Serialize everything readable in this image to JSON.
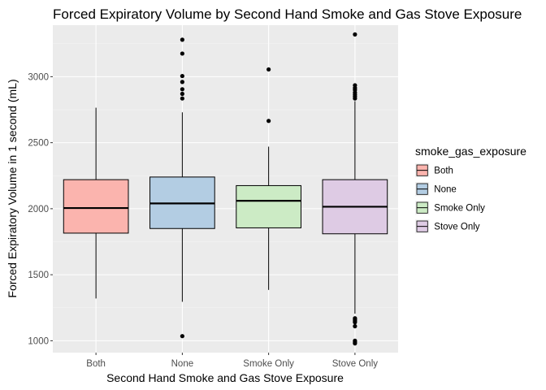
{
  "chart_data": {
    "type": "boxplot",
    "title": "Forced Expiratory Volume by Second Hand Smoke and Gas Stove Exposure",
    "xlabel": "Second Hand Smoke and Gas Stove Exposure",
    "ylabel": "Forced Expiratory Volume in 1 second (mL)",
    "ylim": [
      910,
      3390
    ],
    "yticks": [
      1000,
      1500,
      2000,
      2500,
      3000
    ],
    "grid": true,
    "legend": {
      "title": "smoke_gas_exposure",
      "position": "right",
      "entries": [
        "Both",
        "None",
        "Smoke Only",
        "Stove Only"
      ]
    },
    "categories": [
      "Both",
      "None",
      "Smoke Only",
      "Stove Only"
    ],
    "series": [
      {
        "name": "Both",
        "color": "#fbb4ae",
        "whisker_low": 1320,
        "q1": 1815,
        "median": 2005,
        "q3": 2220,
        "whisker_high": 2765,
        "outliers": []
      },
      {
        "name": "None",
        "color": "#b3cde3",
        "whisker_low": 1295,
        "q1": 1850,
        "median": 2040,
        "q3": 2240,
        "whisker_high": 2730,
        "outliers": [
          3280,
          3175,
          3005,
          2960,
          2905,
          2870,
          2835,
          1035
        ]
      },
      {
        "name": "Smoke Only",
        "color": "#ccebc5",
        "whisker_low": 1385,
        "q1": 1855,
        "median": 2060,
        "q3": 2175,
        "whisker_high": 2470,
        "outliers": [
          3055,
          2665
        ]
      },
      {
        "name": "Stove Only",
        "color": "#decbe4",
        "whisker_low": 1205,
        "q1": 1810,
        "median": 2015,
        "q3": 2220,
        "whisker_high": 2815,
        "outliers": [
          3320,
          2935,
          2915,
          2900,
          2880,
          2865,
          2850,
          2835,
          1170,
          1160,
          1150,
          1140,
          1110,
          1000,
          990,
          980
        ]
      }
    ]
  }
}
